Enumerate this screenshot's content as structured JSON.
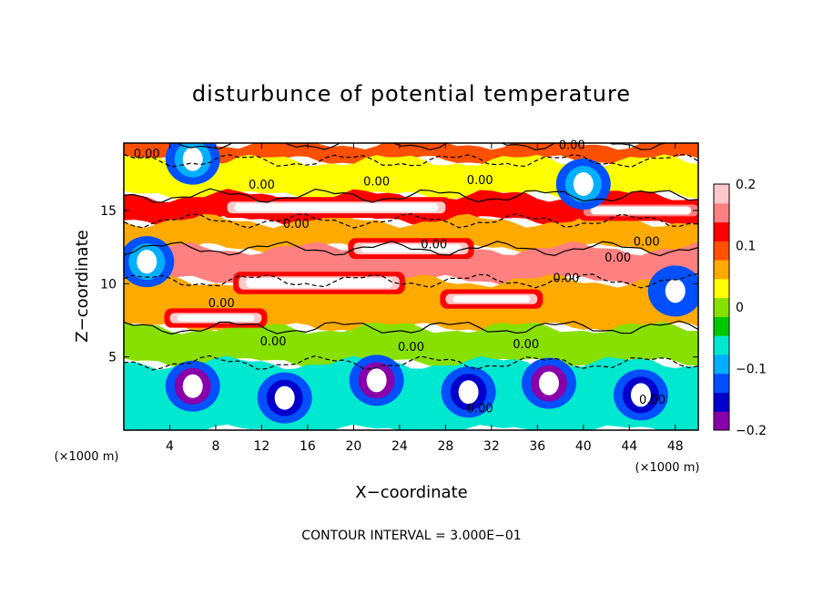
{
  "chart_data": {
    "type": "heatmap",
    "title": "disturbunce of potential temperature",
    "xlabel": "X−coordinate",
    "ylabel": "Z−coordinate",
    "x_unit": "(×1000 m)",
    "z_unit": "(×1000 m)",
    "xlim": [
      0,
      50
    ],
    "ylim": [
      0,
      19.6
    ],
    "x_ticks": [
      4,
      8,
      12,
      16,
      20,
      24,
      28,
      32,
      36,
      40,
      44,
      48
    ],
    "x_tick_labels": [
      "4",
      "8",
      "12",
      "16",
      "20",
      "24",
      "28",
      "32",
      "36",
      "40",
      "44",
      "48"
    ],
    "y_ticks": [
      5,
      10,
      15
    ],
    "y_tick_labels": [
      "5",
      "10",
      "15"
    ],
    "colorbar": {
      "min": -0.2,
      "max": 0.2,
      "ticks": [
        0.2,
        0.1,
        0,
        -0.1,
        -0.2
      ],
      "tick_labels": [
        "0.2",
        "0.1",
        "0",
        "−0.1",
        "−0.2"
      ],
      "colors": [
        "#8800aa",
        "#0000cc",
        "#0050ff",
        "#00b0ff",
        "#00e8d0",
        "#00c800",
        "#88e000",
        "#ffff00",
        "#ffaa00",
        "#ff5000",
        "#ff0000",
        "#ff8080",
        "#ffc8c8"
      ]
    },
    "contour_interval_text": "CONTOUR INTERVAL = 3.000E−01",
    "contour_label": "0.00",
    "contour_label_positions": [
      [
        2,
        18.6
      ],
      [
        12,
        16.5
      ],
      [
        22,
        16.7
      ],
      [
        31,
        16.8
      ],
      [
        39,
        19.2
      ],
      [
        15,
        13.8
      ],
      [
        27,
        12.4
      ],
      [
        38.5,
        10.1
      ],
      [
        43,
        11.5
      ],
      [
        45.5,
        12.6
      ],
      [
        8.5,
        8.4
      ],
      [
        13,
        5.8
      ],
      [
        25,
        5.4
      ],
      [
        35,
        5.6
      ],
      [
        31,
        1.2
      ],
      [
        46,
        1.8
      ]
    ],
    "bands": [
      {
        "z0": 18.4,
        "z1": 19.6,
        "value": 0.1
      },
      {
        "z0": 16.0,
        "z1": 18.4,
        "value": 0.03
      },
      {
        "z0": 14.3,
        "z1": 16.0,
        "value": 0.12
      },
      {
        "z0": 12.4,
        "z1": 14.3,
        "value": 0.05
      },
      {
        "z0": 10.2,
        "z1": 12.4,
        "value": 0.15
      },
      {
        "z0": 7.0,
        "z1": 10.2,
        "value": 0.06
      },
      {
        "z0": 4.6,
        "z1": 7.0,
        "value": 0.0
      },
      {
        "z0": 0.0,
        "z1": 4.6,
        "value": -0.05
      }
    ],
    "high_cores": [
      {
        "x0": 9,
        "x1": 28,
        "z0": 14.8,
        "z1": 15.6,
        "value": 0.22
      },
      {
        "x0": 20,
        "x1": 30,
        "z0": 12.0,
        "z1": 12.8,
        "value": 0.2
      },
      {
        "x0": 10,
        "x1": 24,
        "z0": 9.6,
        "z1": 10.5,
        "value": 0.22
      },
      {
        "x0": 28,
        "x1": 36,
        "z0": 8.6,
        "z1": 9.3,
        "value": 0.2
      },
      {
        "x0": 4,
        "x1": 12,
        "z0": 7.3,
        "z1": 8.0,
        "value": 0.22
      },
      {
        "x0": 40,
        "x1": 50,
        "z0": 14.6,
        "z1": 15.4,
        "value": 0.16
      }
    ],
    "low_cores": [
      {
        "x": 6,
        "z": 3.0,
        "value": -0.18
      },
      {
        "x": 14,
        "z": 2.2,
        "value": -0.15
      },
      {
        "x": 22,
        "z": 3.4,
        "value": -0.19
      },
      {
        "x": 30,
        "z": 2.6,
        "value": -0.16
      },
      {
        "x": 37,
        "z": 3.2,
        "value": -0.18
      },
      {
        "x": 45,
        "z": 2.4,
        "value": -0.15
      },
      {
        "x": 2,
        "z": 11.5,
        "value": -0.1
      },
      {
        "x": 48,
        "z": 9.5,
        "value": -0.12
      },
      {
        "x": 40,
        "z": 16.8,
        "value": -0.09
      },
      {
        "x": 6,
        "z": 18.5,
        "value": -0.08
      }
    ],
    "legend": "colorbar right"
  }
}
